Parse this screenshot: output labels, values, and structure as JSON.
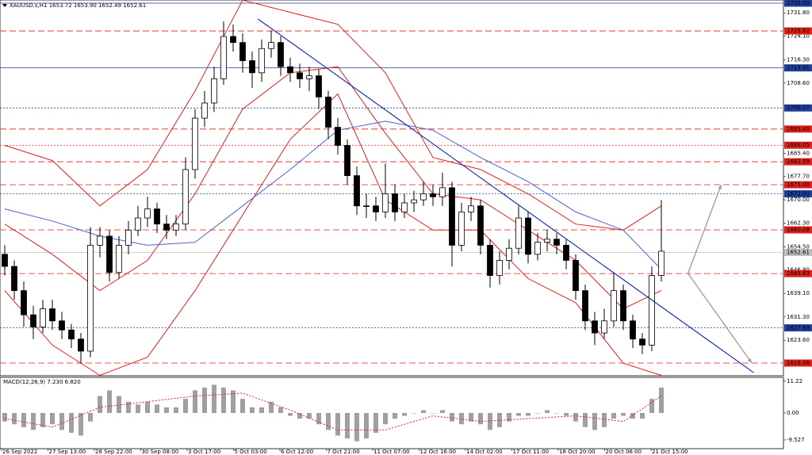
{
  "chart_data": {
    "type": "candlestick",
    "title": "XAUUSD.s,H1 1653.72 1653.90 1652.49 1652.61",
    "x_labels": [
      "26 Sep 2022",
      "27 Sep 13:00",
      "28 Sep 22:00",
      "30 Sep 08:00",
      "3 Oct 17:00",
      "5 Oct 03:00",
      "6 Oct 12:00",
      "7 Oct 21:00",
      "11 Oct 07:00",
      "12 Oct 16:00",
      "14 Oct 02:00",
      "17 Oct 11:00",
      "18 Oct 20:00",
      "20 Oct 06:00",
      "21 Oct 15:00"
    ],
    "open": [
      1652,
      1648,
      1640,
      1632,
      1628,
      1634,
      1630,
      1627,
      1624,
      1620,
      1655,
      1658,
      1646,
      1655,
      1660,
      1664,
      1667,
      1662,
      1660,
      1662,
      1680,
      1697,
      1702,
      1710,
      1724,
      1722,
      1716,
      1712,
      1720,
      1722,
      1714,
      1712,
      1710,
      1711,
      1704,
      1694,
      1688,
      1678,
      1668,
      1668,
      1666,
      1672,
      1666,
      1669,
      1670,
      1672,
      1671,
      1674,
      1655,
      1666,
      1668,
      1655,
      1645,
      1650,
      1654,
      1664,
      1652,
      1656,
      1657,
      1655,
      1650,
      1640,
      1630,
      1626,
      1630,
      1640,
      1630,
      1624,
      1622,
      1645
    ],
    "high": [
      1655,
      1650,
      1643,
      1635,
      1637,
      1637,
      1633,
      1629,
      1626,
      1661,
      1661,
      1660,
      1658,
      1663,
      1668,
      1671,
      1669,
      1665,
      1665,
      1684,
      1700,
      1706,
      1714,
      1729,
      1728,
      1725,
      1719,
      1723,
      1726,
      1724,
      1717,
      1715,
      1714,
      1713,
      1706,
      1697,
      1690,
      1681,
      1672,
      1671,
      1682,
      1675,
      1672,
      1673,
      1676,
      1675,
      1679,
      1676,
      1669,
      1671,
      1670,
      1657,
      1653,
      1657,
      1668,
      1666,
      1659,
      1660,
      1659,
      1657,
      1652,
      1642,
      1633,
      1634,
      1646,
      1642,
      1632,
      1626,
      1648,
      1670
    ],
    "low": [
      1645,
      1637,
      1628,
      1624,
      1626,
      1627,
      1624,
      1621,
      1616,
      1618,
      1651,
      1643,
      1644,
      1652,
      1658,
      1661,
      1659,
      1657,
      1658,
      1660,
      1677,
      1694,
      1699,
      1708,
      1719,
      1712,
      1707,
      1709,
      1717,
      1711,
      1709,
      1707,
      1706,
      1700,
      1690,
      1685,
      1675,
      1665,
      1664,
      1663,
      1664,
      1663,
      1664,
      1666,
      1668,
      1668,
      1668,
      1648,
      1653,
      1663,
      1652,
      1641,
      1642,
      1647,
      1652,
      1649,
      1650,
      1653,
      1652,
      1647,
      1637,
      1627,
      1622,
      1624,
      1628,
      1627,
      1621,
      1619,
      1620,
      1643
    ],
    "close": [
      1648,
      1640,
      1632,
      1628,
      1634,
      1630,
      1627,
      1624,
      1620,
      1655,
      1658,
      1646,
      1655,
      1660,
      1664,
      1667,
      1662,
      1660,
      1662,
      1680,
      1697,
      1702,
      1710,
      1724,
      1722,
      1716,
      1712,
      1720,
      1722,
      1714,
      1712,
      1710,
      1711,
      1704,
      1694,
      1688,
      1678,
      1668,
      1668,
      1666,
      1672,
      1666,
      1669,
      1670,
      1672,
      1671,
      1674,
      1655,
      1666,
      1668,
      1655,
      1645,
      1650,
      1654,
      1664,
      1652,
      1656,
      1657,
      1655,
      1650,
      1640,
      1630,
      1626,
      1630,
      1640,
      1630,
      1624,
      1622,
      1645,
      1653
    ],
    "candle_color": "#000000",
    "ylim": [
      1611.87,
      1736.05
    ],
    "yticks": [
      {
        "value": 1731.8,
        "label": "1731.80"
      },
      {
        "value": 1724.1,
        "label": "1724.10"
      },
      {
        "value": 1716.3,
        "label": "1716.30"
      },
      {
        "value": 1708.6,
        "label": "1708.60"
      },
      {
        "value": 1685.4,
        "label": "1685.40"
      },
      {
        "value": 1677.7,
        "label": "1677.70"
      },
      {
        "value": 1670,
        "label": "1670.00"
      },
      {
        "value": 1662.3,
        "label": "1662.30"
      },
      {
        "value": 1654.5,
        "label": "1654.50"
      },
      {
        "value": 1646.8,
        "label": "1646.80"
      },
      {
        "value": 1639.1,
        "label": "1639.10"
      },
      {
        "value": 1631.3,
        "label": "1631.30"
      },
      {
        "value": 1623.6,
        "label": "1623.60"
      }
    ],
    "levels": [
      {
        "value": 1735,
        "label": "1735.00",
        "color": "#1f3f9a",
        "style": "solid"
      },
      {
        "value": 1725.82,
        "label": "1725.82",
        "color": "#e0201b",
        "style": "dash"
      },
      {
        "value": 1713.61,
        "label": "1713.61",
        "color": "#1f3f9a",
        "style": "solid"
      },
      {
        "value": 1700.37,
        "label": "1700.37",
        "color": "#1f3f9a",
        "style": "dot"
      },
      {
        "value": 1693.4,
        "label": "1693.40",
        "color": "#e0201b",
        "style": "dash"
      },
      {
        "value": 1688.05,
        "label": "1688.05",
        "color": "#e0201b",
        "style": "dot"
      },
      {
        "value": 1682.59,
        "label": "1682.59",
        "color": "#e0201b",
        "style": "dash"
      },
      {
        "value": 1675,
        "label": "1675.00",
        "color": "#e0201b",
        "style": "dash"
      },
      {
        "value": 1672,
        "label": "1672.00",
        "color": "#1f3f9a",
        "style": "dot"
      },
      {
        "value": 1660.08,
        "label": "1660.08",
        "color": "#e0201b",
        "style": "dash"
      },
      {
        "value": 1652.61,
        "label": "1652.61",
        "color": "#c0c0c0",
        "style": "solid"
      },
      {
        "value": 1645.63,
        "label": "1645.63",
        "color": "#e0201b",
        "style": "dash"
      },
      {
        "value": 1627.69,
        "label": "1627.69",
        "color": "#1f3f9a",
        "style": "dot"
      },
      {
        "value": 1616.06,
        "label": "1616.06",
        "color": "#e0201b",
        "style": "dash"
      }
    ],
    "indicators": [
      {
        "color": "#e0201b",
        "x": [
          0,
          5,
          10,
          15,
          20,
          25,
          30,
          35,
          40,
          45,
          50,
          55,
          60,
          65,
          69
        ],
        "values": [
          1688,
          1683,
          1668,
          1680,
          1706,
          1736,
          1732,
          1728,
          1712,
          1684,
          1680,
          1672,
          1662,
          1660,
          1668
        ]
      },
      {
        "color": "#e0201b",
        "x": [
          0,
          5,
          10,
          15,
          20,
          25,
          30,
          35,
          40,
          45,
          50,
          55,
          60,
          65,
          69
        ],
        "values": [
          1640,
          1622,
          1612,
          1618,
          1640,
          1665,
          1690,
          1705,
          1670,
          1660,
          1660,
          1644,
          1636,
          1616,
          1612
        ]
      },
      {
        "color": "#e0201b",
        "x": [
          0,
          5,
          10,
          15,
          20,
          25,
          30,
          35,
          40,
          45,
          50,
          55,
          60,
          65,
          69
        ],
        "values": [
          1662,
          1652,
          1640,
          1650,
          1672,
          1700,
          1712,
          1714,
          1692,
          1672,
          1670,
          1660,
          1650,
          1634,
          1640
        ]
      },
      {
        "color": "#4a5fd0",
        "x": [
          0,
          5,
          10,
          15,
          20,
          25,
          30,
          35,
          40,
          45,
          50,
          55,
          60,
          65,
          69
        ],
        "values": [
          1667,
          1663,
          1658,
          1655,
          1656,
          1668,
          1680,
          1693,
          1696,
          1693,
          1684,
          1676,
          1666,
          1660,
          1647
        ]
      }
    ],
    "trendline": {
      "color": "#1a2fb0",
      "x": [
        26.6,
        78.7
      ],
      "y": [
        1729.8,
        1612.9
      ]
    },
    "projections": [
      {
        "color": "#9a9a9a",
        "x": [
          71.8,
          75.3
        ],
        "y": [
          1645.7,
          1675
        ]
      },
      {
        "color": "#9a9a9a",
        "x": [
          71.8,
          78.5
        ],
        "y": [
          1645.7,
          1616.1
        ]
      }
    ],
    "macd": {
      "title": "MACD(12,26,9) 7.230 6.820",
      "color": "#a0a0a0",
      "values": [
        -3,
        -4,
        -5,
        -6,
        -5,
        -4,
        -6,
        -7,
        -8,
        -3,
        6,
        8,
        6,
        4,
        3,
        4,
        3,
        2,
        2,
        5,
        8,
        9,
        10,
        9,
        8,
        5,
        2,
        2,
        4,
        2,
        -1,
        -2,
        -2,
        -4,
        -6,
        -8,
        -9,
        -10,
        -9,
        -7,
        -4,
        -2,
        -1,
        0,
        1,
        0,
        1,
        -3,
        -4,
        -3,
        -4,
        -6,
        -5,
        -3,
        -1,
        -1,
        0,
        1,
        0,
        -1,
        -3,
        -5,
        -6,
        -5,
        -2,
        -1,
        -2,
        -2,
        5,
        9
      ],
      "signal": {
        "color": "#e0201b",
        "x": [
          0,
          5,
          10,
          15,
          20,
          25,
          30,
          35,
          40,
          45,
          50,
          55,
          60,
          65,
          69
        ],
        "values": [
          -2,
          -5,
          2,
          4,
          6,
          7,
          1,
          -6,
          -6,
          -1,
          -3,
          -2,
          -1,
          -3,
          6
        ]
      },
      "ylim": [
        -12.62,
        12.62
      ],
      "yticks": [
        {
          "value": 11.22,
          "label": "11.22"
        },
        {
          "value": 0,
          "label": "0.00"
        },
        {
          "value": -9.527,
          "label": "-9.527"
        }
      ]
    }
  }
}
